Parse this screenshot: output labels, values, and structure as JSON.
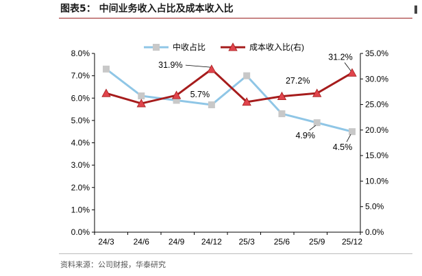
{
  "figure": {
    "title": "图表5：  中间业务收入占比及成本收入比",
    "source": "资料来源：公司财报，华泰研究"
  },
  "colors": {
    "series1": "#8fc6e6",
    "series1_marker": "#c8c8c8",
    "series2": "#a61c1c",
    "series2_marker": "#e0444c",
    "title_rule": "#9a1e1e"
  },
  "chart_data": {
    "type": "line",
    "categories": [
      "24/3",
      "24/6",
      "24/9",
      "24/12",
      "25/3",
      "25/6",
      "25/9",
      "25/12"
    ],
    "series": [
      {
        "name": "中收占比",
        "axis": "left",
        "values": [
          7.3,
          6.1,
          5.9,
          5.7,
          7.0,
          5.3,
          4.9,
          4.5
        ]
      },
      {
        "name": "成本收入比(右)",
        "axis": "right",
        "values": [
          27.2,
          25.2,
          26.8,
          31.9,
          25.5,
          26.6,
          27.2,
          31.2
        ]
      }
    ],
    "y_left": {
      "min": 0,
      "max": 8,
      "step": 1,
      "ticks": [
        "0.0%",
        "1.0%",
        "2.0%",
        "3.0%",
        "4.0%",
        "5.0%",
        "6.0%",
        "7.0%",
        "8.0%"
      ]
    },
    "y_right": {
      "min": 0,
      "max": 35,
      "step": 5,
      "ticks": [
        "0.0%",
        "5.0%",
        "10.0%",
        "15.0%",
        "20.0%",
        "25.0%",
        "30.0%",
        "35.0%"
      ]
    },
    "legend_position": "top-center",
    "grid": false,
    "annotations": [
      {
        "series": 1,
        "index": 3,
        "text": "31.9%"
      },
      {
        "series": 0,
        "index": 3,
        "text": "5.7%"
      },
      {
        "series": 1,
        "index": 7,
        "text": "31.2%"
      },
      {
        "series": 1,
        "index": 6,
        "text": "27.2%"
      },
      {
        "series": 0,
        "index": 6,
        "text": "4.9%"
      },
      {
        "series": 0,
        "index": 7,
        "text": "4.5%"
      }
    ]
  }
}
